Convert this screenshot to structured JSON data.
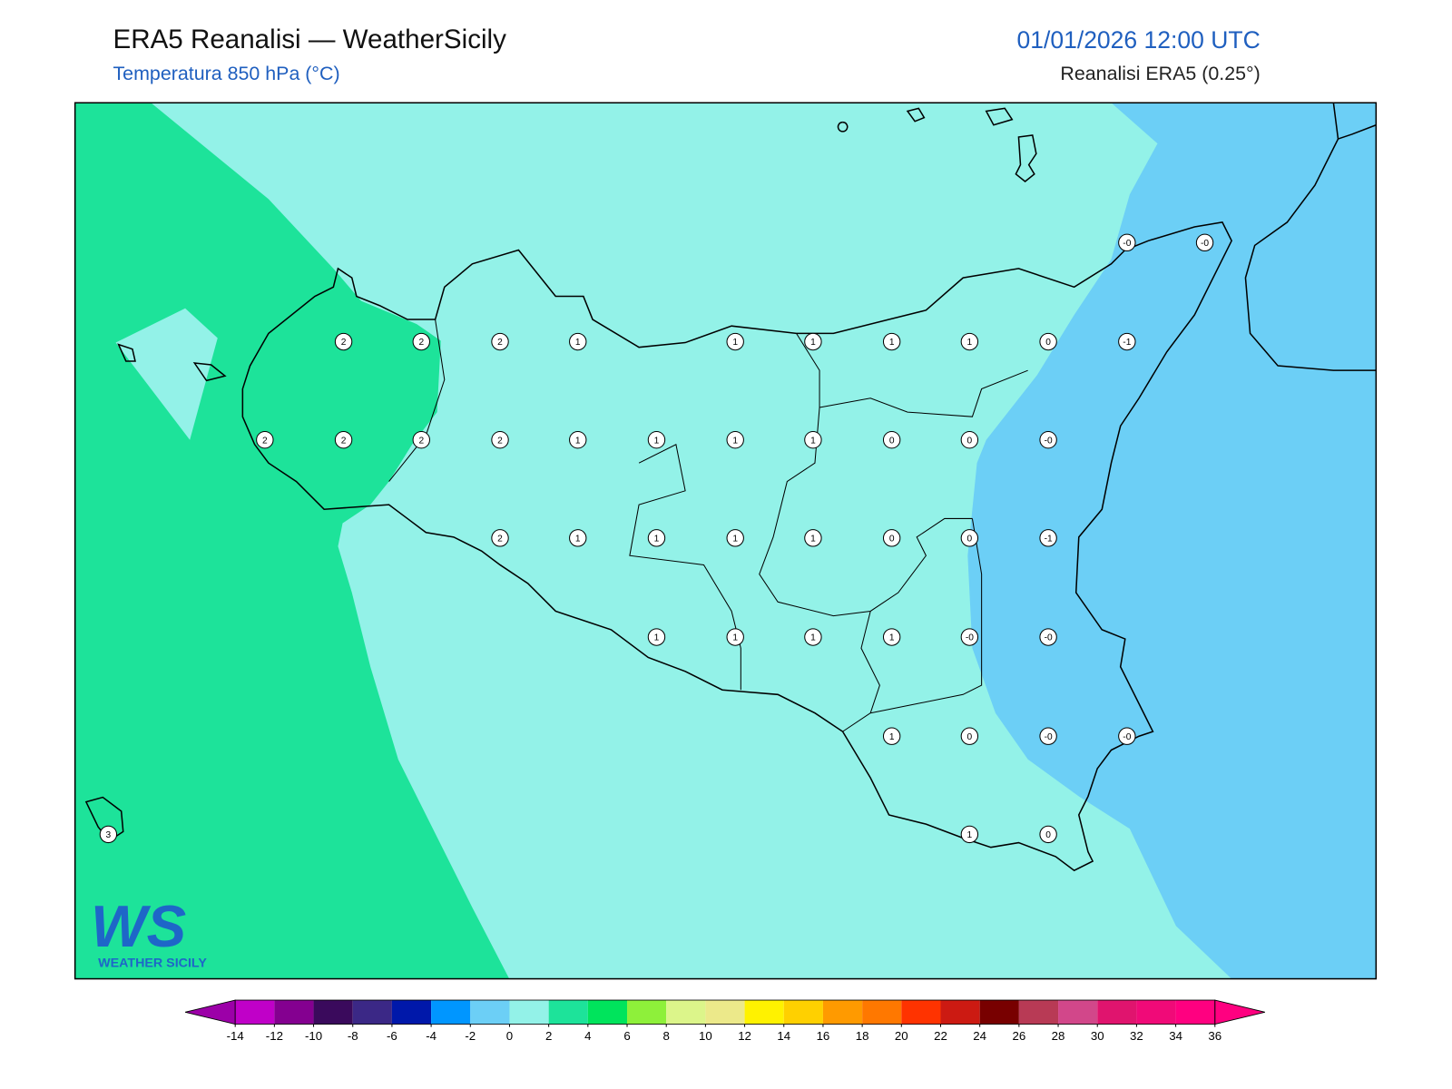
{
  "header": {
    "title": "ERA5 Reanalisi — WeatherSicily",
    "subtitle": "Temperatura 850 hPa (°C)",
    "datetime": "01/01/2026 12:00 UTC",
    "source": "Reanalisi ERA5 (0.25°)"
  },
  "stations": [
    "-0",
    "-0",
    "2",
    "2",
    "2",
    "1",
    "1",
    "1",
    "1",
    "1",
    "0",
    "-1",
    "2",
    "2",
    "2",
    "2",
    "1",
    "1",
    "1",
    "1",
    "0",
    "0",
    "-0",
    "2",
    "1",
    "1",
    "1",
    "1",
    "0",
    "0",
    "-1",
    "1",
    "1",
    "1",
    "1",
    "-0",
    "-0",
    "1",
    "0",
    "-0",
    "-0",
    "3",
    "1",
    "0"
  ],
  "colorbar": {
    "ticks": [
      -14,
      -12,
      -10,
      -8,
      -6,
      -4,
      -2,
      0,
      2,
      4,
      6,
      8,
      10,
      12,
      14,
      16,
      18,
      20,
      22,
      24,
      26,
      28,
      30,
      32,
      34,
      36
    ],
    "colors": [
      "#9c00a8",
      "#c000c8",
      "#840090",
      "#3a0a5c",
      "#3b2886",
      "#0018aa",
      "#0096ff",
      "#6ccff6",
      "#93f2e8",
      "#1de39a",
      "#00e45c",
      "#8ef03a",
      "#dcf58a",
      "#ece98a",
      "#fff200",
      "#ffd000",
      "#ff9a00",
      "#ff7800",
      "#ff3300",
      "#cc1a12",
      "#780000",
      "#b83a55",
      "#d2478a",
      "#e0146e",
      "#f00a78",
      "#ff0080",
      "#ff0080"
    ]
  },
  "logo": {
    "mark": "WS",
    "name": "WEATHER SICILY"
  }
}
